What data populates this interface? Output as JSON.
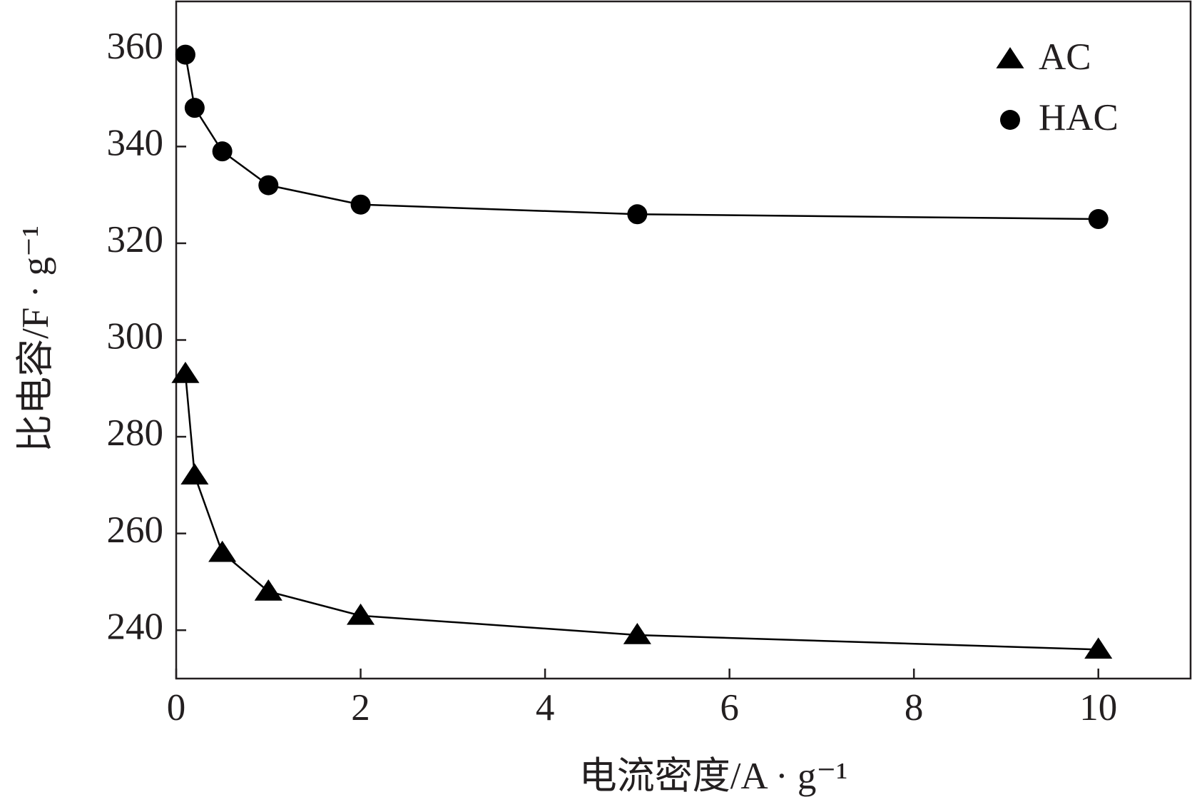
{
  "chart_data": {
    "type": "line",
    "xlabel": "电流密度/A · g⁻¹",
    "ylabel": "比电容/F · g⁻¹",
    "x": [
      0.1,
      0.2,
      0.5,
      1,
      2,
      5,
      10
    ],
    "series": [
      {
        "name": "AC",
        "color": "#000000",
        "marker": "triangle",
        "values": [
          293,
          272,
          256,
          248,
          243,
          239,
          236
        ]
      },
      {
        "name": "HAC",
        "color": "#000000",
        "marker": "circle",
        "values": [
          359,
          348,
          339,
          332,
          328,
          326,
          325
        ]
      }
    ],
    "xlim": [
      0,
      11
    ],
    "xticks": [
      0,
      2,
      4,
      6,
      8,
      10
    ],
    "ylim": [
      230,
      370
    ],
    "yticks": [
      240,
      260,
      280,
      300,
      320,
      340,
      360
    ],
    "legend": "upper right",
    "grid": false
  }
}
